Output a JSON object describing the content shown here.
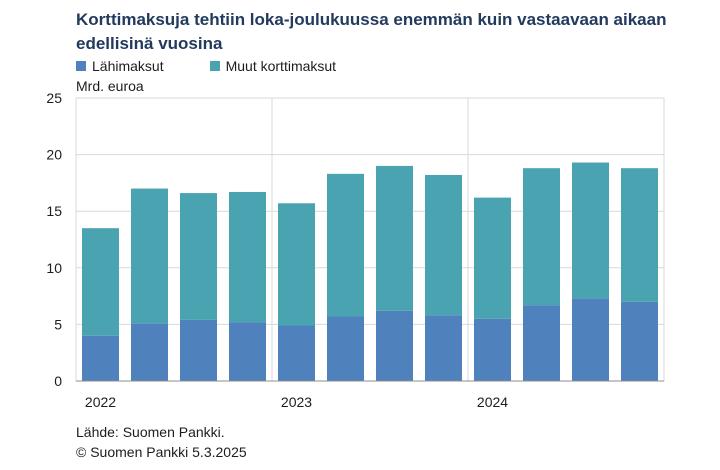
{
  "title": "Korttimaksuja tehtiin loka-joulukuussa enemmän kuin vastaavaan aikaan edellisinä vuosina",
  "unit_label": "Mrd. euroa",
  "colors": {
    "lahimaksut": "#4f81bd",
    "muut": "#4aa3b0",
    "grid": "#d9d9d9",
    "axis": "#8c8c8c"
  },
  "source": "Lähde: Suomen Pankki.",
  "copyright": "© Suomen Pankki 5.3.2025",
  "chart_data": {
    "type": "bar",
    "stacked": true,
    "title": "Korttimaksuja tehtiin loka-joulukuussa enemmän kuin vastaavaan aikaan edellisinä vuosina",
    "ylabel": "Mrd. euroa",
    "ylim": [
      0,
      25
    ],
    "yticks": [
      0,
      5,
      10,
      15,
      20,
      25
    ],
    "year_labels": [
      {
        "label": "2022",
        "start": 0,
        "end": 3
      },
      {
        "label": "2023",
        "start": 4,
        "end": 7
      },
      {
        "label": "2024",
        "start": 8,
        "end": 11
      }
    ],
    "categories": [
      "2022 Q1",
      "2022 Q2",
      "2022 Q3",
      "2022 Q4",
      "2023 Q1",
      "2023 Q2",
      "2023 Q3",
      "2023 Q4",
      "2024 Q1",
      "2024 Q2",
      "2024 Q3",
      "2024 Q4"
    ],
    "series": [
      {
        "name": "Lähimaksut",
        "values": [
          4.0,
          5.1,
          5.4,
          5.2,
          4.9,
          5.7,
          6.2,
          5.8,
          5.5,
          6.7,
          7.3,
          7.0
        ]
      },
      {
        "name": "Muut korttimaksut",
        "values": [
          9.5,
          11.9,
          11.2,
          11.5,
          10.8,
          12.6,
          12.8,
          12.4,
          10.7,
          12.1,
          12.0,
          11.8
        ]
      }
    ],
    "grid": true,
    "legend_position": "top-left"
  }
}
